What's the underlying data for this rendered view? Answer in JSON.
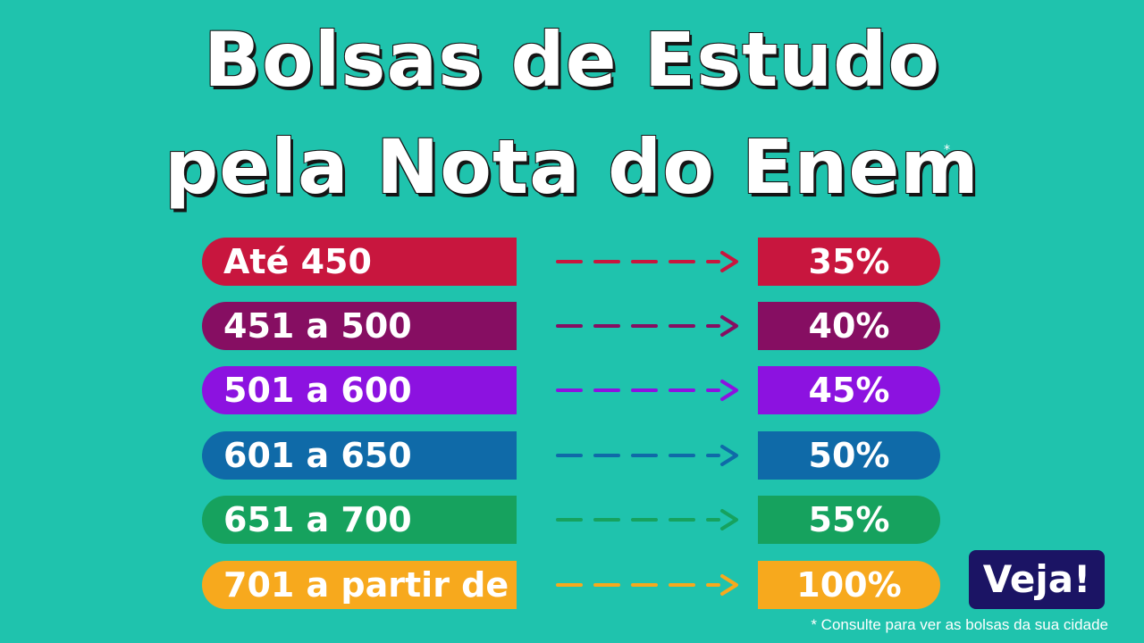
{
  "title": {
    "line1": "Bolsas de Estudo",
    "line2": "pela Nota do Enem",
    "asterisk": "*"
  },
  "rows": [
    {
      "range": "Até 450",
      "percent": "35%",
      "color": "#c8163e"
    },
    {
      "range": "451 a 500",
      "percent": "40%",
      "color": "#860e62"
    },
    {
      "range": "501 a 600",
      "percent": "45%",
      "color": "#8c12e0"
    },
    {
      "range": "601 a 650",
      "percent": "50%",
      "color": "#0f6aa8"
    },
    {
      "range": "651 a 700",
      "percent": "55%",
      "color": "#16a25e"
    },
    {
      "range": "701 a partir de",
      "percent": "100%",
      "color": "#f7a91d"
    }
  ],
  "badge": {
    "label": "Veja!"
  },
  "footnote": "* Consulte para ver as bolsas da sua cidade",
  "colors": {
    "background": "#1fc3ad",
    "badge": "#1b1464"
  }
}
